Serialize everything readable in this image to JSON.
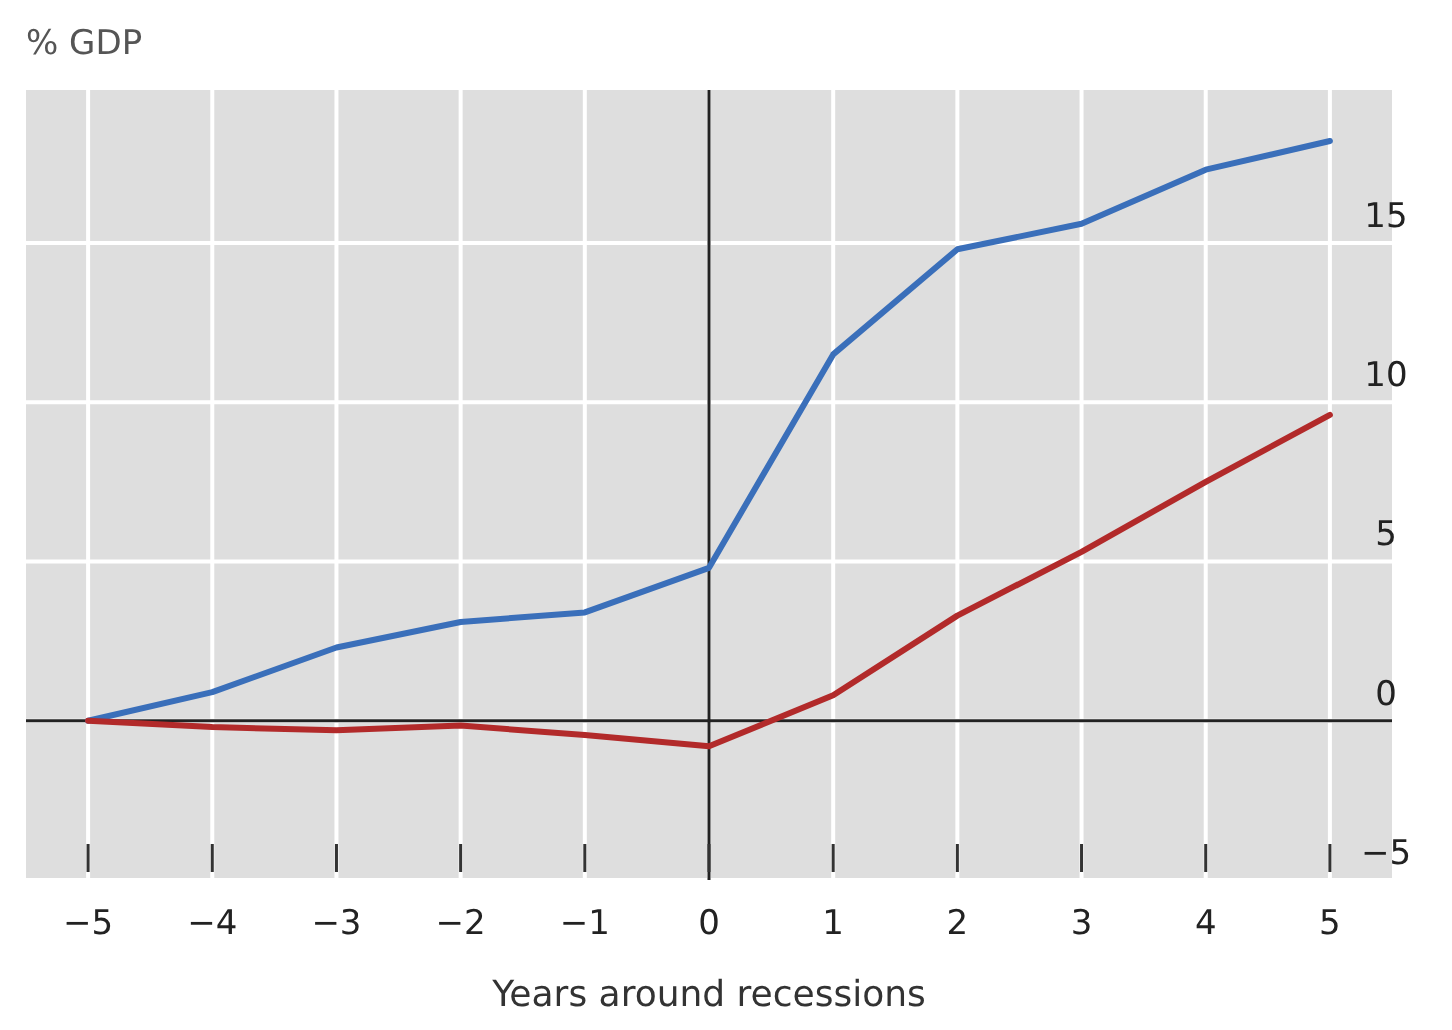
{
  "chart_data": {
    "type": "line",
    "title": "% GDP",
    "xlabel": "Years around recessions",
    "x": [
      -5,
      -4,
      -3,
      -2,
      -1,
      0,
      1,
      2,
      3,
      4,
      5
    ],
    "series": [
      {
        "color": "#3a6fba",
        "values": [
          0,
          0.9,
          2.3,
          3.1,
          3.4,
          4.8,
          11.5,
          14.8,
          15.6,
          17.3,
          18.2
        ]
      },
      {
        "color": "#b22a2a",
        "values": [
          0,
          -0.2,
          -0.3,
          -0.15,
          -0.45,
          -0.8,
          0.8,
          3.3,
          5.3,
          7.5,
          9.6
        ]
      }
    ],
    "xlim": [
      -5.5,
      5.5
    ],
    "xticks": [
      {
        "value": -5,
        "label": "−5"
      },
      {
        "value": -4,
        "label": "−4"
      },
      {
        "value": -3,
        "label": "−3"
      },
      {
        "value": -2,
        "label": "−2"
      },
      {
        "value": -1,
        "label": "−1"
      },
      0,
      1,
      2,
      3,
      4,
      5
    ],
    "ylim": [
      -5,
      19.8
    ],
    "yticks": [
      {
        "value": -5,
        "label": "−5"
      },
      0,
      5,
      10,
      15
    ],
    "grid": true,
    "marker": "none",
    "line_style": "solid"
  }
}
